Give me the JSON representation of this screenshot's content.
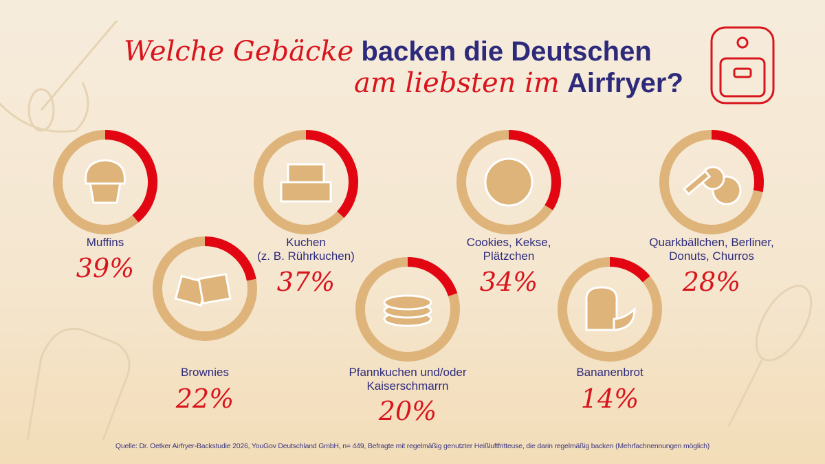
{
  "title": {
    "part1": "Welche Gebäcke",
    "part2": "backen die Deutschen",
    "part3": "am liebsten im",
    "part4": "Airfryer?"
  },
  "colors": {
    "accent": "#e20613",
    "ring": "#deb47a",
    "navy": "#2d2a7c",
    "background": "#f6ecdc"
  },
  "chart_data": {
    "type": "pie",
    "style": "donut",
    "unit": "%",
    "items": [
      {
        "label": "Muffins",
        "value": 39,
        "display": "39%",
        "icon": "muffin-icon"
      },
      {
        "label": "Kuchen\n(z. B. Rührkuchen)",
        "value": 37,
        "display": "37%",
        "icon": "cake-icon"
      },
      {
        "label": "Cookies, Kekse,\nPlätzchen",
        "value": 34,
        "display": "34%",
        "icon": "cookie-icon"
      },
      {
        "label": "Quarkbällchen, Berliner,\nDonuts, Churros",
        "value": 28,
        "display": "28%",
        "icon": "donut-churros-icon"
      },
      {
        "label": "Brownies",
        "value": 22,
        "display": "22%",
        "icon": "brownie-icon"
      },
      {
        "label": "Pfannkuchen und/oder\nKaiserschmarrn",
        "value": 20,
        "display": "20%",
        "icon": "pancake-icon"
      },
      {
        "label": "Bananenbrot",
        "value": 14,
        "display": "14%",
        "icon": "banana-bread-icon"
      }
    ]
  },
  "source": "Quelle: Dr. Oetker Airfryer-Backstudie 2026, YouGov Deutschland GmbH, n= 449, Befragte mit regelmäßig genutzter Heißluftfritteuse, die darin regelmäßig backen (Mehrfachnennungen möglich)"
}
